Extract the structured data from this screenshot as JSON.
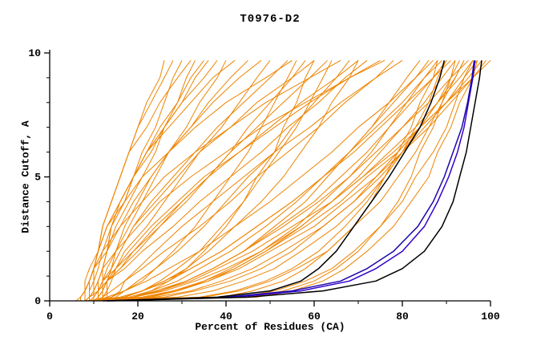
{
  "chart_data": {
    "type": "line",
    "title": "T0976-D2",
    "xlabel": "Percent of Residues (CA)",
    "ylabel": "Distance Cutoff, A",
    "xlim": [
      0,
      100
    ],
    "ylim": [
      0,
      10
    ],
    "x_major_ticks": [
      0,
      20,
      40,
      60,
      80,
      100
    ],
    "x_minor_ticks": [
      10,
      30,
      50,
      70,
      90
    ],
    "y_major_ticks": [
      0,
      5,
      10
    ],
    "y_minor_ticks": [
      1,
      2,
      3,
      4,
      6,
      7,
      8,
      9
    ],
    "grid": false,
    "legend": "none",
    "colors": {
      "ensemble": "#ee8400",
      "black": "#000000",
      "blue1": "#3300cc",
      "blue2": "#1c07a8"
    },
    "y_levels": [
      0,
      0.15,
      0.4,
      0.8,
      1.3,
      2,
      3,
      4,
      5,
      6,
      7,
      8,
      9,
      9.7
    ],
    "series": [
      {
        "name": "m01",
        "group": "ensemble",
        "x": [
          8,
          8,
          8,
          9,
          10,
          11,
          12,
          14,
          16,
          18,
          20,
          22,
          25,
          26
        ]
      },
      {
        "name": "m02",
        "group": "ensemble",
        "x": [
          9,
          9,
          9,
          9,
          10,
          11,
          12,
          14,
          16,
          18,
          20,
          23,
          26,
          28
        ]
      },
      {
        "name": "m03",
        "group": "ensemble",
        "x": [
          7,
          7,
          8,
          9,
          10,
          12,
          14,
          17,
          19,
          21,
          24,
          26,
          28,
          30
        ]
      },
      {
        "name": "m04",
        "group": "ensemble",
        "x": [
          10,
          10,
          10,
          10,
          10,
          11,
          12,
          14,
          16,
          18,
          22,
          25,
          29,
          32
        ]
      },
      {
        "name": "m05",
        "group": "ensemble",
        "x": [
          8,
          8,
          8,
          9,
          10,
          11,
          13,
          16,
          19,
          22,
          25,
          29,
          32,
          35
        ]
      },
      {
        "name": "m06",
        "group": "ensemble",
        "x": [
          11,
          11,
          11,
          11,
          12,
          13,
          14,
          17,
          19,
          22,
          26,
          30,
          35,
          38
        ]
      },
      {
        "name": "m07",
        "group": "ensemble",
        "x": [
          9,
          9,
          10,
          11,
          12,
          15,
          18,
          21,
          24,
          27,
          31,
          34,
          38,
          40
        ]
      },
      {
        "name": "m08",
        "group": "ensemble",
        "x": [
          12,
          12,
          12,
          12,
          12,
          13,
          14,
          16,
          19,
          22,
          27,
          32,
          37,
          42
        ]
      },
      {
        "name": "m09",
        "group": "ensemble",
        "x": [
          10,
          10,
          10,
          11,
          12,
          13,
          16,
          19,
          23,
          27,
          32,
          36,
          41,
          45
        ]
      },
      {
        "name": "m10",
        "group": "ensemble",
        "x": [
          6,
          7,
          8,
          9,
          10,
          13,
          15,
          18,
          21,
          24,
          26,
          29,
          31,
          33
        ]
      },
      {
        "name": "m11",
        "group": "ensemble",
        "x": [
          13,
          13,
          13,
          13,
          14,
          15,
          17,
          20,
          23,
          27,
          32,
          37,
          43,
          48
        ]
      },
      {
        "name": "m12",
        "group": "ensemble",
        "x": [
          7,
          7,
          8,
          8,
          9,
          11,
          13,
          16,
          19,
          23,
          26,
          30,
          33,
          36
        ]
      },
      {
        "name": "m13",
        "group": "ensemble",
        "x": [
          9,
          10,
          11,
          12,
          15,
          17,
          22,
          26,
          30,
          34,
          39,
          43,
          47,
          50
        ]
      },
      {
        "name": "m14",
        "group": "ensemble",
        "x": [
          11,
          11,
          12,
          12,
          14,
          16,
          19,
          23,
          28,
          33,
          38,
          44,
          50,
          54
        ]
      },
      {
        "name": "m15",
        "group": "ensemble",
        "x": [
          8,
          9,
          11,
          13,
          16,
          20,
          25,
          31,
          36,
          41,
          45,
          50,
          55,
          58
        ]
      },
      {
        "name": "m16",
        "group": "ensemble",
        "x": [
          12,
          12,
          12,
          13,
          14,
          16,
          19,
          24,
          29,
          34,
          41,
          47,
          55,
          60
        ]
      },
      {
        "name": "m17",
        "group": "ensemble",
        "x": [
          10,
          11,
          12,
          13,
          16,
          19,
          25,
          30,
          36,
          41,
          47,
          53,
          59,
          63
        ]
      },
      {
        "name": "m18",
        "group": "ensemble",
        "x": [
          9,
          9,
          9,
          10,
          11,
          12,
          16,
          21,
          26,
          33,
          41,
          49,
          59,
          66
        ]
      },
      {
        "name": "m19",
        "group": "ensemble",
        "x": [
          13,
          15,
          17,
          21,
          24,
          29,
          35,
          40,
          45,
          51,
          55,
          60,
          65,
          68
        ]
      },
      {
        "name": "m20",
        "group": "ensemble",
        "x": [
          11,
          11,
          12,
          13,
          15,
          19,
          24,
          30,
          36,
          43,
          50,
          57,
          65,
          70
        ]
      },
      {
        "name": "m21",
        "group": "ensemble",
        "x": [
          8,
          9,
          11,
          13,
          17,
          21,
          28,
          34,
          41,
          48,
          54,
          61,
          67,
          72
        ]
      },
      {
        "name": "m22",
        "group": "ensemble",
        "x": [
          12,
          12,
          13,
          14,
          15,
          18,
          23,
          29,
          35,
          43,
          51,
          59,
          68,
          75
        ]
      },
      {
        "name": "m23",
        "group": "ensemble",
        "x": [
          10,
          12,
          14,
          17,
          21,
          26,
          34,
          41,
          47,
          54,
          61,
          67,
          74,
          78
        ]
      },
      {
        "name": "m24",
        "group": "ensemble",
        "x": [
          14,
          14,
          16,
          17,
          20,
          24,
          30,
          37,
          44,
          51,
          59,
          66,
          74,
          80
        ]
      },
      {
        "name": "m25",
        "group": "ensemble",
        "x": [
          9,
          9,
          9,
          9,
          10,
          11,
          13,
          17,
          21,
          27,
          33,
          40,
          49,
          55
        ]
      },
      {
        "name": "m26",
        "group": "ensemble",
        "x": [
          11,
          11,
          11,
          12,
          13,
          15,
          20,
          25,
          32,
          40,
          48,
          58,
          68,
          76
        ]
      },
      {
        "name": "m27",
        "group": "ensemble",
        "x": [
          10,
          19,
          25,
          31,
          37,
          44,
          51,
          58,
          63,
          68,
          73,
          77,
          81,
          84
        ]
      },
      {
        "name": "m28",
        "group": "ensemble",
        "x": [
          12,
          18,
          23,
          29,
          34,
          41,
          49,
          56,
          62,
          68,
          73,
          78,
          83,
          86
        ]
      },
      {
        "name": "m29",
        "group": "ensemble",
        "x": [
          9,
          21,
          28,
          35,
          41,
          48,
          56,
          62,
          68,
          73,
          77,
          81,
          85,
          88
        ]
      },
      {
        "name": "m30",
        "group": "ensemble",
        "x": [
          11,
          19,
          25,
          31,
          37,
          44,
          52,
          60,
          66,
          72,
          77,
          82,
          87,
          90
        ]
      },
      {
        "name": "m31",
        "group": "ensemble",
        "x": [
          13,
          23,
          29,
          36,
          42,
          49,
          57,
          64,
          70,
          75,
          80,
          85,
          89,
          92
        ]
      },
      {
        "name": "m32",
        "group": "ensemble",
        "x": [
          10,
          26,
          33,
          41,
          48,
          55,
          62,
          69,
          74,
          79,
          84,
          88,
          92,
          94
        ]
      },
      {
        "name": "m33",
        "group": "ensemble",
        "x": [
          12,
          19,
          24,
          31,
          37,
          44,
          53,
          61,
          68,
          74,
          80,
          86,
          91,
          95
        ]
      },
      {
        "name": "m34",
        "group": "ensemble",
        "x": [
          8,
          19,
          26,
          33,
          40,
          48,
          57,
          64,
          71,
          77,
          83,
          88,
          93,
          96
        ]
      },
      {
        "name": "m35",
        "group": "ensemble",
        "x": [
          11,
          24,
          32,
          39,
          46,
          53,
          62,
          69,
          75,
          80,
          85,
          90,
          94,
          97
        ]
      },
      {
        "name": "m36",
        "group": "ensemble",
        "x": [
          14,
          22,
          29,
          35,
          42,
          49,
          58,
          66,
          72,
          79,
          84,
          90,
          95,
          98
        ]
      },
      {
        "name": "m37",
        "group": "ensemble",
        "x": [
          10,
          21,
          28,
          36,
          43,
          50,
          60,
          67,
          74,
          80,
          86,
          91,
          96,
          99
        ]
      },
      {
        "name": "m38",
        "group": "ensemble",
        "x": [
          12,
          19,
          25,
          32,
          38,
          46,
          55,
          64,
          71,
          78,
          84,
          90,
          96,
          100
        ]
      },
      {
        "name": "m39",
        "group": "ensemble",
        "x": [
          9,
          29,
          37,
          44,
          51,
          57,
          65,
          71,
          76,
          80,
          84,
          88,
          91,
          93
        ]
      },
      {
        "name": "m40",
        "group": "ensemble",
        "x": [
          13,
          17,
          21,
          27,
          32,
          39,
          47,
          55,
          62,
          69,
          75,
          81,
          87,
          91
        ]
      },
      {
        "name": "m41",
        "group": "ensemble",
        "x": [
          11,
          16,
          21,
          26,
          32,
          39,
          47,
          55,
          62,
          68,
          74,
          80,
          85,
          89
        ]
      },
      {
        "name": "m42",
        "group": "ensemble",
        "x": [
          10,
          13,
          17,
          22,
          27,
          34,
          42,
          50,
          57,
          64,
          70,
          77,
          83,
          87
        ]
      },
      {
        "name": "m43",
        "group": "ensemble",
        "x": [
          12,
          39,
          46,
          53,
          58,
          63,
          69,
          73,
          76,
          79,
          82,
          84,
          87,
          88
        ]
      },
      {
        "name": "m44",
        "group": "ensemble",
        "x": [
          10,
          46,
          53,
          60,
          65,
          70,
          75,
          79,
          82,
          84,
          87,
          89,
          91,
          92
        ]
      },
      {
        "name": "m45",
        "group": "ensemble",
        "x": [
          14,
          43,
          51,
          58,
          64,
          69,
          75,
          80,
          83,
          87,
          90,
          92,
          94,
          96
        ]
      },
      {
        "name": "m46",
        "group": "ensemble",
        "x": [
          11,
          35,
          43,
          50,
          56,
          63,
          69,
          75,
          79,
          83,
          86,
          89,
          92,
          94
        ]
      },
      {
        "name": "m47",
        "group": "ensemble",
        "x": [
          13,
          47,
          55,
          62,
          67,
          72,
          78,
          82,
          86,
          88,
          91,
          93,
          96,
          97
        ]
      },
      {
        "name": "m48",
        "group": "ensemble",
        "x": [
          9,
          34,
          42,
          49,
          55,
          61,
          67,
          72,
          76,
          80,
          83,
          86,
          88,
          90
        ]
      },
      {
        "name": "m49",
        "group": "ensemble",
        "x": [
          10,
          14,
          17,
          20,
          24,
          28,
          33,
          37,
          41,
          45,
          48,
          51,
          54,
          56
        ]
      },
      {
        "name": "m50",
        "group": "ensemble",
        "x": [
          12,
          17,
          21,
          25,
          29,
          34,
          39,
          44,
          48,
          52,
          56,
          59,
          62,
          64
        ]
      },
      {
        "name": "m51",
        "group": "ensemble",
        "x": [
          8,
          16,
          21,
          26,
          31,
          36,
          42,
          48,
          53,
          57,
          61,
          64,
          68,
          70
        ]
      },
      {
        "name": "m52",
        "group": "ensemble",
        "x": [
          11,
          19,
          23,
          27,
          31,
          35,
          40,
          44,
          47,
          51,
          53,
          56,
          58,
          60
        ]
      },
      {
        "name": "blue-a",
        "group": "blue1",
        "x": [
          13,
          42,
          57,
          68,
          74,
          80,
          85,
          88,
          90.5,
          92.5,
          94,
          95,
          96,
          96.5
        ]
      },
      {
        "name": "blue-b",
        "group": "blue2",
        "x": [
          12,
          40,
          55,
          66,
          72,
          78,
          83.5,
          87,
          89.5,
          91.5,
          93.5,
          94.8,
          95.8,
          96.3
        ]
      },
      {
        "name": "black-a",
        "group": "black",
        "x": [
          13,
          38,
          50,
          57,
          61,
          65,
          69,
          73,
          77,
          80.5,
          84,
          86.5,
          88.5,
          89.5
        ]
      },
      {
        "name": "black-b",
        "group": "black",
        "x": [
          14,
          45,
          62,
          74,
          80,
          85,
          89,
          91.5,
          93,
          94.5,
          95.5,
          96.5,
          97.5,
          98
        ]
      }
    ]
  }
}
